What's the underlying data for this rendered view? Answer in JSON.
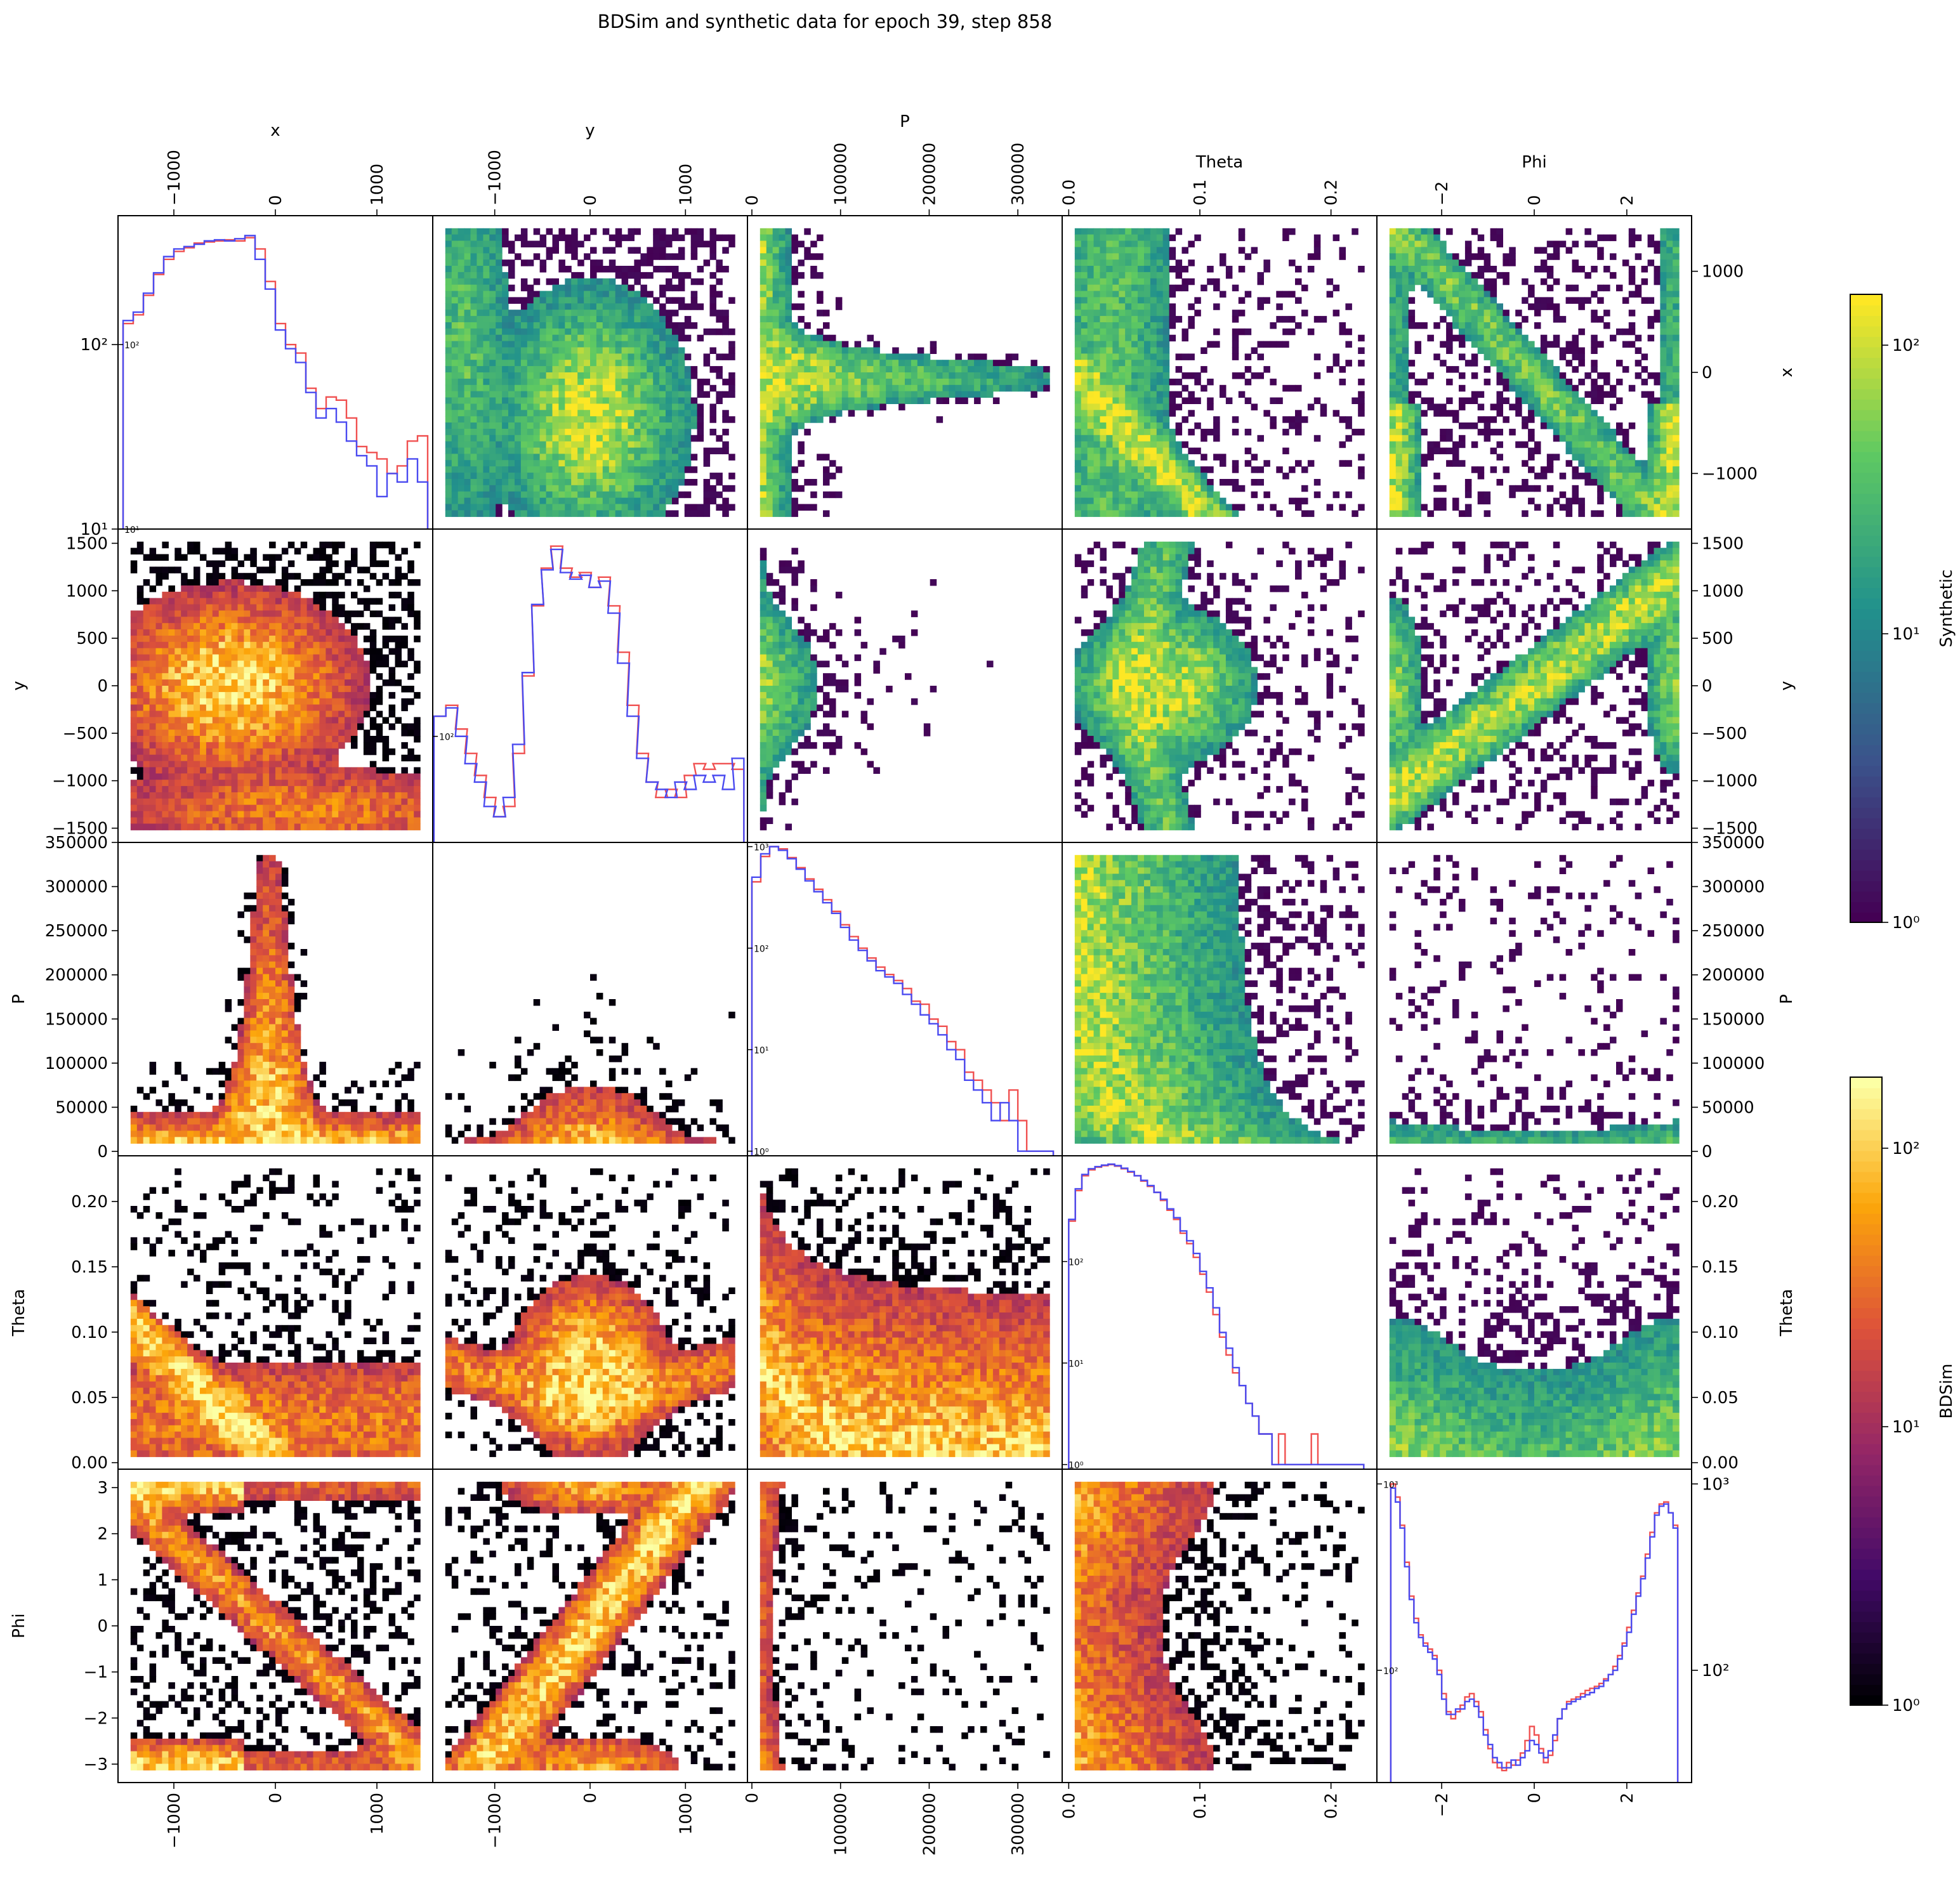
{
  "figure": {
    "title": "BDSim and synthetic data for epoch 39, step 858",
    "variables": [
      "x",
      "y",
      "P",
      "Theta",
      "Phi"
    ]
  },
  "colorbars": [
    {
      "label": "Synthetic",
      "colormap": "viridis",
      "scale": "log",
      "ticks": [
        "10⁰",
        "10¹",
        "10²"
      ],
      "range": [
        1,
        150
      ]
    },
    {
      "label": "BDSim",
      "colormap": "inferno",
      "scale": "log",
      "ticks": [
        "10⁰",
        "10¹",
        "10²"
      ],
      "range": [
        1,
        180
      ]
    }
  ],
  "chart_data": {
    "type": "pairplot",
    "layout": "upper triangle: Synthetic 2D histograms (viridis); lower triangle: BDSim 2D histograms (inferno); diagonal: 1D histograms, red = BDSim, blue = Synthetic, log y",
    "variables": [
      {
        "name": "x",
        "range": [
          -1550,
          1550
        ],
        "ticks": [
          -1000,
          0,
          1000
        ],
        "tick_labels": [
          "−1000",
          "0",
          "1000"
        ]
      },
      {
        "name": "y",
        "range": [
          -1650,
          1650
        ],
        "ticks": [
          -1000,
          0,
          1000
        ],
        "tick_labels": [
          "−1000",
          "0",
          "1000"
        ],
        "side_ticks": [
          -1500,
          -1000,
          -500,
          0,
          500,
          1000,
          1500
        ],
        "side_tick_labels": [
          "−1500",
          "−1000",
          "−500",
          "0",
          "500",
          "1000",
          "1500"
        ]
      },
      {
        "name": "P",
        "range": [
          -5000,
          350000
        ],
        "ticks": [
          0,
          100000,
          200000,
          300000
        ],
        "tick_labels": [
          "0",
          "100000",
          "200000",
          "300000"
        ],
        "side_ticks": [
          0,
          50000,
          100000,
          150000,
          200000,
          250000,
          300000,
          350000
        ],
        "side_tick_labels": [
          "0",
          "50000",
          "100000",
          "150000",
          "200000",
          "250000",
          "300000",
          "350000"
        ]
      },
      {
        "name": "Theta",
        "range": [
          -0.005,
          0.235
        ],
        "ticks": [
          0.0,
          0.1,
          0.2
        ],
        "tick_labels": [
          "0.0",
          "0.1",
          "0.2"
        ],
        "side_ticks": [
          0.0,
          0.05,
          0.1,
          0.15,
          0.2
        ],
        "side_tick_labels": [
          "0.00",
          "0.05",
          "0.10",
          "0.15",
          "0.20"
        ]
      },
      {
        "name": "Phi",
        "range": [
          -3.4,
          3.4
        ],
        "ticks": [
          -2,
          0,
          2
        ],
        "tick_labels": [
          "−2",
          "0",
          "2"
        ],
        "side_ticks": [
          -3,
          -2,
          -1,
          0,
          1,
          2,
          3
        ],
        "side_tick_labels": [
          "−3",
          "−2",
          "−1",
          "0",
          "1",
          "2",
          "3"
        ]
      }
    ],
    "diagonal_histograms": [
      {
        "variable": "x",
        "ylim": [
          10,
          500
        ],
        "y_tick_labels": [
          "10¹",
          "10²"
        ],
        "bin_centers": [
          -1450,
          -1350,
          -1250,
          -1150,
          -1050,
          -950,
          -850,
          -750,
          -650,
          -550,
          -450,
          -350,
          -250,
          -150,
          -50,
          50,
          150,
          250,
          350,
          450,
          550,
          650,
          750,
          850,
          950,
          1050,
          1150,
          1250,
          1350,
          1450
        ],
        "bdsim": [
          130,
          145,
          185,
          240,
          290,
          320,
          335,
          355,
          360,
          365,
          370,
          365,
          380,
          330,
          220,
          130,
          100,
          90,
          58,
          45,
          52,
          50,
          40,
          28,
          26,
          24,
          20,
          22,
          30,
          32
        ],
        "synthetic": [
          135,
          150,
          190,
          245,
          300,
          330,
          340,
          350,
          365,
          370,
          365,
          375,
          390,
          290,
          200,
          120,
          95,
          80,
          55,
          40,
          45,
          38,
          30,
          25,
          22,
          15,
          20,
          18,
          24,
          18
        ]
      },
      {
        "variable": "y",
        "ylim": [
          25,
          1500
        ],
        "y_tick_labels": [
          "10²"
        ],
        "bin_centers": [
          -1575,
          -1450,
          -1350,
          -1250,
          -1150,
          -1050,
          -950,
          -850,
          -750,
          -650,
          -550,
          -450,
          -350,
          -250,
          -150,
          -50,
          50,
          150,
          250,
          350,
          450,
          550,
          650,
          750,
          850,
          950,
          1050,
          1150,
          1250,
          1350,
          1450,
          1550
        ],
        "bdsim": [
          130,
          150,
          110,
          80,
          60,
          45,
          35,
          40,
          80,
          220,
          550,
          900,
          1200,
          900,
          800,
          850,
          700,
          800,
          550,
          300,
          150,
          80,
          55,
          45,
          50,
          45,
          60,
          70,
          65,
          70,
          70,
          65
        ],
        "synthetic": [
          130,
          145,
          100,
          70,
          55,
          40,
          35,
          45,
          90,
          230,
          560,
          880,
          1150,
          850,
          780,
          820,
          700,
          760,
          500,
          260,
          130,
          75,
          55,
          50,
          45,
          55,
          50,
          60,
          55,
          60,
          50,
          75
        ]
      },
      {
        "variable": "P",
        "ylim": [
          0.9,
          1100
        ],
        "y_tick_labels": [
          "10⁰",
          "10¹",
          "10²",
          "10³"
        ],
        "bin_centers": [
          5000,
          15000,
          25000,
          35000,
          45000,
          55000,
          65000,
          75000,
          85000,
          95000,
          105000,
          115000,
          125000,
          135000,
          145000,
          155000,
          165000,
          175000,
          185000,
          195000,
          205000,
          215000,
          225000,
          235000,
          245000,
          255000,
          265000,
          275000,
          285000,
          295000,
          305000,
          315000,
          325000,
          335000
        ],
        "bdsim": [
          450,
          800,
          1000,
          950,
          780,
          620,
          480,
          380,
          300,
          230,
          170,
          130,
          100,
          80,
          65,
          55,
          48,
          40,
          30,
          28,
          20,
          17,
          12,
          10,
          6,
          5,
          4,
          3,
          2,
          4,
          2,
          1,
          1,
          1
        ],
        "synthetic": [
          500,
          850,
          1000,
          920,
          760,
          600,
          460,
          360,
          280,
          220,
          160,
          120,
          95,
          75,
          60,
          52,
          45,
          35,
          28,
          22,
          18,
          14,
          10,
          8,
          5,
          4,
          3,
          2,
          3,
          2,
          1,
          1,
          1,
          1
        ]
      },
      {
        "variable": "Theta",
        "ylim": [
          0.9,
          1100
        ],
        "y_tick_labels": [
          "10⁰",
          "10¹",
          "10²"
        ],
        "bin_centers": [
          0.0025,
          0.0075,
          0.0125,
          0.0175,
          0.0225,
          0.0275,
          0.0325,
          0.0375,
          0.0425,
          0.0475,
          0.0525,
          0.0575,
          0.0625,
          0.0675,
          0.0725,
          0.0775,
          0.0825,
          0.0875,
          0.0925,
          0.0975,
          0.1025,
          0.1075,
          0.1125,
          0.1175,
          0.1225,
          0.1275,
          0.1325,
          0.1375,
          0.1425,
          0.1475,
          0.1525,
          0.1575,
          0.1625,
          0.1675,
          0.1725,
          0.1775,
          0.1825,
          0.1875,
          0.1925,
          0.1975,
          0.2025,
          0.2075,
          0.2125,
          0.2175,
          0.2225
        ],
        "bdsim": [
          250,
          500,
          700,
          800,
          850,
          880,
          900,
          870,
          820,
          760,
          700,
          620,
          550,
          480,
          400,
          320,
          260,
          190,
          150,
          110,
          75,
          50,
          30,
          18,
          12,
          8,
          6,
          4,
          3,
          2,
          2,
          1,
          2,
          1,
          1,
          1,
          1,
          2,
          1,
          1,
          1,
          1,
          1,
          1,
          1
        ],
        "synthetic": [
          260,
          520,
          720,
          820,
          860,
          890,
          910,
          880,
          830,
          770,
          700,
          630,
          560,
          480,
          410,
          330,
          270,
          200,
          160,
          120,
          80,
          55,
          35,
          20,
          14,
          9,
          6,
          4,
          3,
          2,
          2,
          1,
          1,
          1,
          1,
          1,
          1,
          1,
          1,
          1,
          1,
          1,
          1,
          1,
          1
        ]
      },
      {
        "variable": "Phi",
        "ylim": [
          25,
          1200
        ],
        "y_tick_labels": [
          "10²",
          "10³"
        ],
        "bin_centers": [
          -3.05,
          -2.95,
          -2.85,
          -2.75,
          -2.65,
          -2.55,
          -2.45,
          -2.35,
          -2.25,
          -2.15,
          -2.05,
          -1.95,
          -1.85,
          -1.75,
          -1.65,
          -1.55,
          -1.45,
          -1.35,
          -1.25,
          -1.15,
          -1.05,
          -0.95,
          -0.85,
          -0.75,
          -0.65,
          -0.55,
          -0.45,
          -0.35,
          -0.25,
          -0.15,
          -0.05,
          0.05,
          0.15,
          0.25,
          0.35,
          0.45,
          0.55,
          0.65,
          0.75,
          0.85,
          0.95,
          1.05,
          1.15,
          1.25,
          1.35,
          1.45,
          1.55,
          1.65,
          1.75,
          1.85,
          1.95,
          2.05,
          2.15,
          2.25,
          2.35,
          2.45,
          2.55,
          2.65,
          2.75,
          2.85,
          2.95,
          3.05
        ],
        "bdsim": [
          1000,
          850,
          600,
          380,
          250,
          190,
          155,
          140,
          130,
          120,
          100,
          75,
          60,
          55,
          60,
          65,
          72,
          75,
          68,
          60,
          48,
          38,
          32,
          30,
          29,
          32,
          31,
          33,
          36,
          42,
          50,
          45,
          38,
          32,
          35,
          42,
          55,
          62,
          68,
          70,
          72,
          75,
          78,
          80,
          82,
          85,
          90,
          95,
          105,
          120,
          140,
          170,
          210,
          260,
          320,
          420,
          550,
          700,
          780,
          800,
          700,
          600
        ],
        "synthetic": [
          950,
          800,
          580,
          360,
          240,
          180,
          150,
          135,
          125,
          115,
          95,
          70,
          58,
          58,
          62,
          62,
          68,
          70,
          64,
          56,
          45,
          40,
          34,
          32,
          30,
          30,
          33,
          31,
          34,
          37,
          42,
          40,
          36,
          34,
          37,
          45,
          55,
          62,
          66,
          68,
          70,
          72,
          74,
          76,
          80,
          82,
          88,
          95,
          100,
          115,
          135,
          160,
          200,
          250,
          310,
          400,
          520,
          680,
          760,
          780,
          700,
          580
        ]
      }
    ],
    "pair_panels_note": "Off-diagonal panels are 2D density histograms (counts per bin, log color scale). Structures visible: x–y central ellipse near (−400, 0); P falls sharply with |x| and |y|; Theta decreases linearly with x from −1500 to 0; Phi bands at ±3 and diagonal bands vs x and y."
  }
}
